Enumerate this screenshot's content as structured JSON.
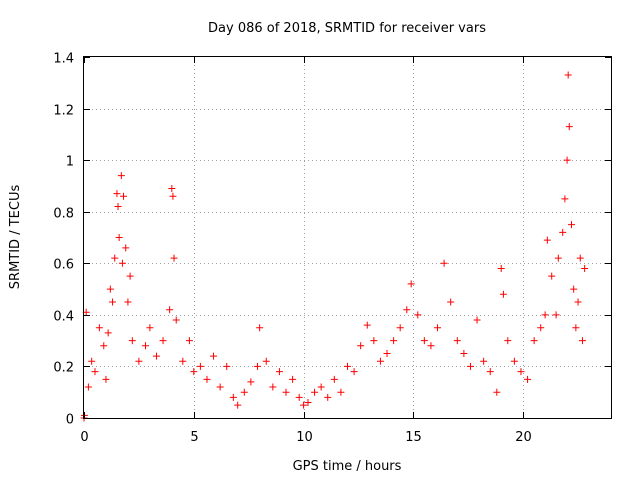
{
  "chart_data": {
    "type": "scatter",
    "title": "Day 086 of 2018, SRMTID for receiver vars",
    "xlabel": "GPS time / hours",
    "ylabel": "SRMTID / TECUs",
    "xlim": [
      0,
      24
    ],
    "ylim": [
      0,
      1.4
    ],
    "xticks": [
      0,
      5,
      10,
      15,
      20
    ],
    "xtick_labels": [
      "0",
      "5",
      "10",
      "15",
      "20"
    ],
    "yticks": [
      0,
      0.2,
      0.4,
      0.6,
      0.8,
      1.0,
      1.2,
      1.4
    ],
    "ytick_labels": [
      "0",
      "0.2",
      "0.4",
      "0.6",
      "0.8",
      "1",
      "1.2",
      "1.4"
    ],
    "grid": true,
    "marker": "+",
    "color": "#ff0000",
    "series": [
      {
        "name": "SRMTID",
        "x": [
          0.0,
          0.02,
          0.1,
          0.2,
          0.35,
          0.5,
          0.7,
          0.9,
          1.0,
          1.1,
          1.2,
          1.3,
          1.4,
          1.5,
          1.55,
          1.6,
          1.7,
          1.75,
          1.8,
          1.9,
          2.0,
          2.1,
          2.2,
          2.5,
          2.8,
          3.0,
          3.3,
          3.6,
          3.9,
          4.0,
          4.05,
          4.1,
          4.2,
          4.5,
          4.8,
          5.0,
          5.3,
          5.6,
          5.9,
          6.2,
          6.5,
          6.8,
          7.0,
          7.3,
          7.6,
          7.9,
          8.0,
          8.3,
          8.6,
          8.9,
          9.2,
          9.5,
          9.8,
          10.0,
          10.2,
          10.5,
          10.8,
          11.1,
          11.4,
          11.7,
          12.0,
          12.3,
          12.6,
          12.9,
          13.2,
          13.5,
          13.8,
          14.1,
          14.4,
          14.7,
          14.9,
          15.2,
          15.5,
          15.8,
          16.1,
          16.4,
          16.7,
          17.0,
          17.3,
          17.6,
          17.9,
          18.2,
          18.5,
          18.8,
          19.0,
          19.1,
          19.3,
          19.6,
          19.9,
          20.2,
          20.5,
          20.8,
          21.0,
          21.1,
          21.3,
          21.5,
          21.6,
          21.8,
          21.9,
          22.0,
          22.05,
          22.1,
          22.2,
          22.3,
          22.4,
          22.5,
          22.6,
          22.7,
          22.8
        ],
        "y": [
          0.0,
          0.01,
          0.41,
          0.12,
          0.22,
          0.18,
          0.35,
          0.28,
          0.15,
          0.33,
          0.5,
          0.45,
          0.62,
          0.87,
          0.82,
          0.7,
          0.94,
          0.6,
          0.86,
          0.66,
          0.45,
          0.55,
          0.3,
          0.22,
          0.28,
          0.35,
          0.24,
          0.3,
          0.42,
          0.89,
          0.86,
          0.62,
          0.38,
          0.22,
          0.3,
          0.18,
          0.2,
          0.15,
          0.24,
          0.12,
          0.2,
          0.08,
          0.05,
          0.1,
          0.14,
          0.2,
          0.35,
          0.22,
          0.12,
          0.18,
          0.1,
          0.15,
          0.08,
          0.05,
          0.06,
          0.1,
          0.12,
          0.08,
          0.15,
          0.1,
          0.2,
          0.18,
          0.28,
          0.36,
          0.3,
          0.22,
          0.25,
          0.3,
          0.35,
          0.42,
          0.52,
          0.4,
          0.3,
          0.28,
          0.35,
          0.6,
          0.45,
          0.3,
          0.25,
          0.2,
          0.38,
          0.22,
          0.18,
          0.1,
          0.58,
          0.48,
          0.3,
          0.22,
          0.18,
          0.15,
          0.3,
          0.35,
          0.4,
          0.69,
          0.55,
          0.4,
          0.62,
          0.72,
          0.85,
          1.0,
          1.33,
          1.13,
          0.75,
          0.5,
          0.35,
          0.45,
          0.62,
          0.3,
          0.58
        ]
      }
    ]
  }
}
